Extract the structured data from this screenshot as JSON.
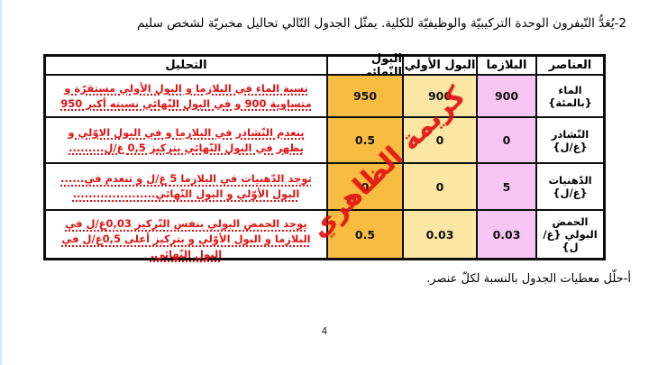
{
  "page": {
    "title": "2-يُعَدُّ النّيفرون الوحدة التركيبيّة والوظيفيّة للكلية. يمثّل الجدول التّالي تحاليل مخبريّة لشخص سليم",
    "footer_instruction": "أ-حلّل معطيات الجدول بالنسبة لكلّ عنصر.",
    "page_number": "4"
  },
  "watermark": {
    "text": "كريمة الظاهري",
    "color": "#e31212"
  },
  "table": {
    "colors": {
      "plasma_bg": "#f7c6f2",
      "primary_bg": "#fbe6a4",
      "final_bg": "#f8bc41",
      "ink_red": "#e31212"
    },
    "headers": {
      "elements": "العناصر",
      "plasma": "البلازما",
      "primary_urine": "البول الأولي",
      "final_urine": "البول النّهائي",
      "analysis": "التحليل"
    },
    "rows": [
      {
        "element": "الماء",
        "unit": "{بالمئة}",
        "plasma": "900",
        "primary": "900",
        "final": "950",
        "analysis_lines": [
          "نسبة الماء في البلازما و البول الأولي مستقرّة و",
          "متساوية 900 و في البول النّهائي نسبته أكبر 950"
        ]
      },
      {
        "element": "النّشادر",
        "unit": "{غ/ل}",
        "plasma": "0",
        "primary": "0",
        "final": "0.5",
        "analysis_lines": [
          "ينعدم النّشادر في البلازما و في البول الاوّلي و",
          "يظهر في البول النّهائي بتركيز 0,5 غ/ل........."
        ]
      },
      {
        "element": "الدّهنيات",
        "unit": "{غ/ل}",
        "plasma": "5",
        "primary": "0",
        "final": "0",
        "analysis_lines": [
          "توجد الدّهنيات في البلازما 5 غ/ل و تنعدم في......",
          "البول الأوّلي و البول النّهائي....................."
        ]
      },
      {
        "element": "الحمض",
        "unit": "البولي {غ/ل}",
        "plasma": "0.03",
        "primary": "0.03",
        "final": "0.5",
        "analysis_lines": [
          "يوجد الحمض البولي بنفس التّركيز 0,03غ/ل في",
          "البلازما و البول الأوّلي و بتركيز أعلى 0,5غ/ل في",
          "البول النّهائي."
        ]
      }
    ]
  }
}
